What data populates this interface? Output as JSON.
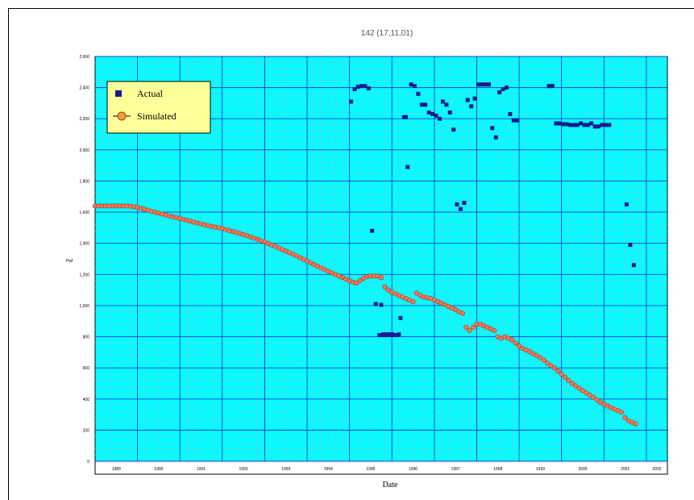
{
  "chart_data": {
    "type": "scatter",
    "title": "142 (17,11,01)",
    "xlabel": "Date",
    "ylabel": "Pwf",
    "ylim": [
      0,
      2600
    ],
    "yticks": [
      0,
      200,
      400,
      600,
      800,
      1000,
      1200,
      1400,
      1600,
      1800,
      2000,
      2200,
      2400,
      2600
    ],
    "ytick_labels": [
      "0",
      "200",
      "400",
      "600",
      "800",
      "1,000",
      "1,200",
      "1,400",
      "1,600",
      "1,800",
      "2,000",
      "2,200",
      "2,400",
      "2,600"
    ],
    "xlim": [
      "1989-01-01",
      "2002-07-01"
    ],
    "xtick_labels": [
      "1989",
      "1990",
      "1991",
      "1992",
      "1993",
      "1994",
      "1995",
      "1996",
      "1997",
      "1998",
      "1999",
      "2000",
      "2001",
      "2002"
    ],
    "grid": true,
    "legend_position": "top-left",
    "colors": {
      "background": "#00ffff",
      "grid_minor": "#6cc6e6",
      "grid_major": "#3535c8",
      "actual": "#1a1a8c",
      "simulated_fill": "#e87a58",
      "simulated_edge": "#a04030",
      "legend_bg": "#ffff99"
    },
    "series": [
      {
        "name": "Actual",
        "marker": "square",
        "x": [
          "1995-01-15",
          "1995-02-15",
          "1995-03-15",
          "1995-04-15",
          "1995-05-15",
          "1995-06-15",
          "1995-07-15",
          "1995-08-15",
          "1995-09-15",
          "1995-10-15",
          "1995-11-15",
          "1995-12-15",
          "1996-01-15",
          "1996-02-15",
          "1996-03-15",
          "1996-04-15",
          "1996-05-15",
          "1996-06-15",
          "1996-07-15",
          "1996-08-15",
          "1996-09-15",
          "1996-10-15",
          "1996-11-15",
          "1996-12-15",
          "1997-01-15",
          "1997-02-15",
          "1997-03-15",
          "1997-04-15",
          "1997-05-15",
          "1997-06-15",
          "1997-07-15",
          "1997-08-15",
          "1997-09-15",
          "1997-10-15",
          "1997-11-15",
          "1997-12-15",
          "1998-01-15",
          "1998-02-15",
          "1998-03-15",
          "1998-04-15",
          "1998-05-15",
          "1998-06-15",
          "1998-07-15",
          "1998-08-15",
          "1998-09-15",
          "1998-10-15",
          "1998-11-15",
          "1998-12-15",
          "1999-09-15",
          "1999-10-15",
          "1999-11-15",
          "1999-12-15",
          "2000-01-15",
          "2000-02-15",
          "2000-03-15",
          "2000-04-15",
          "2000-05-15",
          "2000-06-15",
          "2000-07-15",
          "2000-08-15",
          "2000-09-15",
          "2000-10-15",
          "2000-11-15",
          "2000-12-15",
          "2001-01-15",
          "2001-02-15",
          "2001-07-15",
          "2001-08-15",
          "2001-09-15",
          "1995-10-01",
          "1995-10-20",
          "1995-11-05",
          "1995-11-25",
          "1995-12-05",
          "1995-12-25",
          "1996-01-05",
          "1996-03-01",
          "1996-05-01"
        ],
        "y": [
          2310,
          2390,
          2405,
          2410,
          2410,
          2395,
          1480,
          1010,
          810,
          810,
          810,
          810,
          810,
          810,
          920,
          2210,
          1890,
          2420,
          2410,
          2360,
          2290,
          2290,
          2240,
          2230,
          2220,
          2200,
          2310,
          2290,
          2240,
          2130,
          1650,
          1620,
          1660,
          2320,
          2280,
          2330,
          2420,
          2420,
          2420,
          2420,
          2140,
          2080,
          2370,
          2390,
          2400,
          2230,
          2190,
          2190,
          2410,
          2410,
          2170,
          2170,
          2165,
          2165,
          2160,
          2160,
          2160,
          2170,
          2160,
          2160,
          2170,
          2150,
          2150,
          2160,
          2160,
          2160,
          1650,
          1390,
          1260,
          1005,
          815,
          815,
          815,
          815,
          815,
          815,
          815,
          2210
        ]
      },
      {
        "name": "Simulated",
        "marker": "circle",
        "x": [
          "1989-01-01",
          "1989-02-01",
          "1989-03-01",
          "1989-04-01",
          "1989-05-01",
          "1989-06-01",
          "1989-07-01",
          "1989-08-01",
          "1989-09-01",
          "1989-10-01",
          "1989-11-01",
          "1989-12-01",
          "1990-01-01",
          "1990-02-01",
          "1990-03-01",
          "1990-04-01",
          "1990-05-01",
          "1990-06-01",
          "1990-07-01",
          "1990-08-01",
          "1990-09-01",
          "1990-10-01",
          "1990-11-01",
          "1990-12-01",
          "1991-01-01",
          "1991-02-01",
          "1991-03-01",
          "1991-04-01",
          "1991-05-01",
          "1991-06-01",
          "1991-07-01",
          "1991-08-01",
          "1991-09-01",
          "1991-10-01",
          "1991-11-01",
          "1991-12-01",
          "1992-01-01",
          "1992-02-01",
          "1992-03-01",
          "1992-04-01",
          "1992-05-01",
          "1992-06-01",
          "1992-07-01",
          "1992-08-01",
          "1992-09-01",
          "1992-10-01",
          "1992-11-01",
          "1992-12-01",
          "1993-01-01",
          "1993-02-01",
          "1993-03-01",
          "1993-04-01",
          "1993-05-01",
          "1993-06-01",
          "1993-07-01",
          "1993-08-01",
          "1993-09-01",
          "1993-10-01",
          "1993-11-01",
          "1993-12-01",
          "1994-01-01",
          "1994-02-01",
          "1994-03-01",
          "1994-04-01",
          "1994-05-01",
          "1994-06-01",
          "1994-07-01",
          "1994-08-01",
          "1994-09-01",
          "1994-10-01",
          "1994-11-01",
          "1994-12-01",
          "1995-01-01",
          "1995-02-01",
          "1995-03-01",
          "1995-04-01",
          "1995-05-01",
          "1995-06-01",
          "1995-07-01",
          "1995-08-01",
          "1995-09-01",
          "1995-10-01",
          "1995-11-01",
          "1995-12-01",
          "1996-01-01",
          "1996-02-01",
          "1996-03-01",
          "1996-04-01",
          "1996-05-01",
          "1996-06-01",
          "1996-07-01",
          "1996-08-01",
          "1996-09-01",
          "1996-10-01",
          "1996-11-01",
          "1996-12-01",
          "1997-01-01",
          "1997-02-01",
          "1997-03-01",
          "1997-04-01",
          "1997-05-01",
          "1997-06-01",
          "1997-07-01",
          "1997-08-01",
          "1997-09-01",
          "1997-10-01",
          "1997-11-01",
          "1997-12-01",
          "1998-01-01",
          "1998-02-01",
          "1998-03-01",
          "1998-04-01",
          "1998-05-01",
          "1998-06-01",
          "1998-07-01",
          "1998-08-01",
          "1998-09-01",
          "1998-10-01",
          "1998-11-01",
          "1998-12-01",
          "1999-01-01",
          "1999-02-01",
          "1999-03-01",
          "1999-04-01",
          "1999-05-01",
          "1999-06-01",
          "1999-07-01",
          "1999-08-01",
          "1999-09-01",
          "1999-10-01",
          "1999-11-01",
          "1999-12-01",
          "2000-01-01",
          "2000-02-01",
          "2000-03-01",
          "2000-04-01",
          "2000-05-01",
          "2000-06-01",
          "2000-07-01",
          "2000-08-01",
          "2000-09-01",
          "2000-10-01",
          "2000-11-01",
          "2000-12-01",
          "2001-01-01",
          "2001-02-01",
          "2001-03-01",
          "2001-04-01",
          "2001-05-01",
          "2001-06-01",
          "2001-07-01",
          "2001-08-01",
          "2001-09-01",
          "2001-10-01"
        ],
        "y": [
          1640,
          1640,
          1640,
          1640,
          1640,
          1640,
          1640,
          1640,
          1640,
          1640,
          1638,
          1635,
          1630,
          1625,
          1618,
          1612,
          1606,
          1600,
          1594,
          1588,
          1582,
          1576,
          1570,
          1565,
          1560,
          1554,
          1548,
          1542,
          1536,
          1530,
          1525,
          1519,
          1514,
          1509,
          1504,
          1499,
          1494,
          1488,
          1482,
          1476,
          1470,
          1463,
          1456,
          1449,
          1441,
          1433,
          1425,
          1417,
          1408,
          1399,
          1390,
          1380,
          1370,
          1360,
          1350,
          1340,
          1330,
          1319,
          1308,
          1297,
          1286,
          1275,
          1264,
          1253,
          1242,
          1231,
          1220,
          1210,
          1200,
          1190,
          1180,
          1170,
          1160,
          1150,
          1145,
          1160,
          1175,
          1185,
          1190,
          1190,
          1190,
          1180,
          1120,
          1100,
          1085,
          1075,
          1065,
          1055,
          1045,
          1035,
          1025,
          1080,
          1065,
          1055,
          1050,
          1045,
          1035,
          1025,
          1015,
          1005,
          995,
          985,
          975,
          960,
          950,
          860,
          840,
          860,
          880,
          880,
          870,
          860,
          850,
          840,
          800,
          790,
          800,
          790,
          780,
          760,
          740,
          725,
          715,
          705,
          690,
          680,
          665,
          650,
          630,
          615,
          600,
          580,
          560,
          540,
          520,
          500,
          485,
          470,
          455,
          440,
          425,
          410,
          395,
          380,
          365,
          355,
          345,
          335,
          325,
          315,
          280,
          260,
          250,
          240
        ]
      }
    ]
  }
}
